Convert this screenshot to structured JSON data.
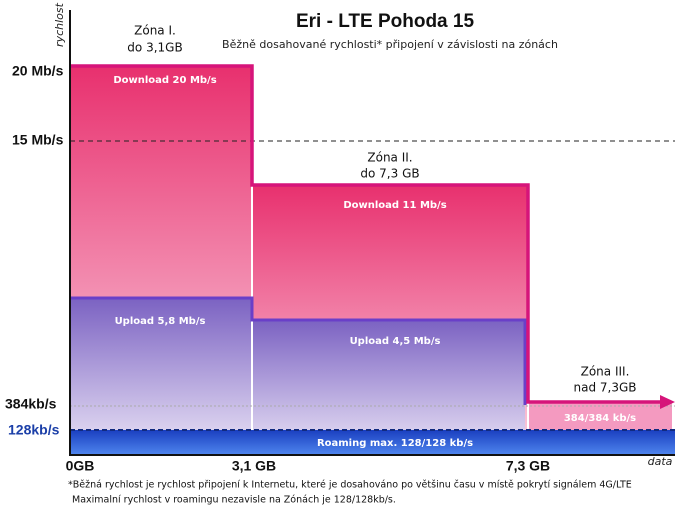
{
  "title": "Eri - LTE Pohoda 15",
  "subtitle": "Běžně dosahované rychlosti* připojení v závislosti na zónách",
  "y_axis": {
    "label": "rychlost",
    "ticks": [
      "20 Mb/s",
      "15 Mb/s",
      "384kb/s",
      "128kb/s"
    ]
  },
  "x_axis": {
    "label": "data",
    "ticks": [
      "0GB",
      "3,1 GB",
      "7,3 GB"
    ]
  },
  "zones": [
    {
      "name": "Zóna I.",
      "limit": "do 3,1GB",
      "download": "Download 20 Mb/s",
      "upload": "Upload 5,8 Mb/s"
    },
    {
      "name": "Zóna II.",
      "limit": "do 7,3 GB",
      "download": "Download 11 Mb/s",
      "upload": "Upload 4,5 Mb/s"
    },
    {
      "name": "Zóna III.",
      "limit": "nad 7,3GB",
      "speed": "384/384 kb/s"
    }
  ],
  "roaming": "Roaming max. 128/128 kb/s",
  "footnote": [
    "*Běžná rychlost je rychlost připojení k Internetu, které je dosahováno po většinu času v místě pokrytí signálem 4G/LTE",
    "Maximalní rychlost v roamingu  nezavisle na Zónách je 128/128kb/s."
  ]
}
